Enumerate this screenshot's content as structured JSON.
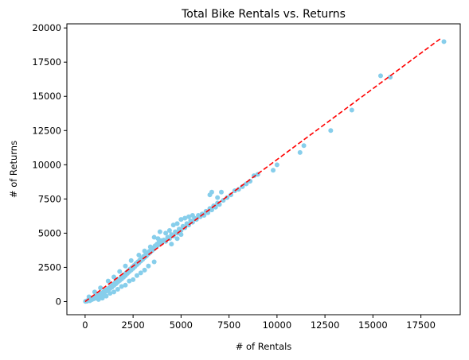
{
  "chart_data": {
    "type": "scatter",
    "title": "Total Bike Rentals vs. Returns",
    "xlabel": "# of Rentals",
    "ylabel": "# of Returns",
    "xlim": [
      -950,
      19550
    ],
    "ylim": [
      -960,
      20300
    ],
    "xticks": [
      0,
      2500,
      5000,
      7500,
      10000,
      12500,
      15000,
      17500
    ],
    "yticks": [
      0,
      2500,
      5000,
      7500,
      10000,
      12500,
      15000,
      17500,
      20000
    ],
    "grid": false,
    "legend": "none",
    "colors": {
      "points": "#87ceeb",
      "reference_line": "#ff0000",
      "axes": "#000000"
    },
    "reference_line": {
      "style": "dashed",
      "x": [
        0,
        18600
      ],
      "y": [
        0,
        19300
      ]
    },
    "points": [
      [
        20,
        10
      ],
      [
        60,
        40
      ],
      [
        100,
        30
      ],
      [
        150,
        90
      ],
      [
        200,
        120
      ],
      [
        250,
        60
      ],
      [
        300,
        180
      ],
      [
        350,
        140
      ],
      [
        400,
        260
      ],
      [
        450,
        200
      ],
      [
        500,
        330
      ],
      [
        550,
        250
      ],
      [
        600,
        420
      ],
      [
        650,
        380
      ],
      [
        700,
        300
      ],
      [
        750,
        520
      ],
      [
        800,
        460
      ],
      [
        850,
        600
      ],
      [
        900,
        520
      ],
      [
        950,
        700
      ],
      [
        1000,
        650
      ],
      [
        1050,
        820
      ],
      [
        1100,
        760
      ],
      [
        1150,
        900
      ],
      [
        1200,
        850
      ],
      [
        1250,
        1000
      ],
      [
        1300,
        960
      ],
      [
        1350,
        1120
      ],
      [
        1400,
        1050
      ],
      [
        1450,
        1250
      ],
      [
        1500,
        1180
      ],
      [
        1550,
        1360
      ],
      [
        1600,
        1300
      ],
      [
        1650,
        1480
      ],
      [
        1700,
        1420
      ],
      [
        1750,
        1600
      ],
      [
        1800,
        1540
      ],
      [
        1850,
        1720
      ],
      [
        1900,
        1650
      ],
      [
        1950,
        1850
      ],
      [
        2000,
        1780
      ],
      [
        2050,
        1980
      ],
      [
        2100,
        1900
      ],
      [
        2150,
        2120
      ],
      [
        2200,
        2050
      ],
      [
        2250,
        2250
      ],
      [
        2300,
        2180
      ],
      [
        2350,
        2380
      ],
      [
        2400,
        2300
      ],
      [
        2450,
        2500
      ],
      [
        2500,
        2420
      ],
      [
        2550,
        2640
      ],
      [
        2600,
        2560
      ],
      [
        2650,
        2780
      ],
      [
        2700,
        2700
      ],
      [
        2750,
        2900
      ],
      [
        2800,
        2820
      ],
      [
        2850,
        3040
      ],
      [
        2900,
        2960
      ],
      [
        2950,
        3160
      ],
      [
        3000,
        3080
      ],
      [
        3050,
        3300
      ],
      [
        3100,
        3220
      ],
      [
        3150,
        3420
      ],
      [
        3200,
        3340
      ],
      [
        3250,
        3560
      ],
      [
        3300,
        3480
      ],
      [
        3350,
        3680
      ],
      [
        3400,
        3600
      ],
      [
        3450,
        3820
      ],
      [
        3500,
        3740
      ],
      [
        3550,
        3940
      ],
      [
        3600,
        3860
      ],
      [
        3650,
        4080
      ],
      [
        3700,
        4000
      ],
      [
        3750,
        4200
      ],
      [
        3800,
        4120
      ],
      [
        3850,
        4340
      ],
      [
        3900,
        4260
      ],
      [
        3950,
        4460
      ],
      [
        700,
        150
      ],
      [
        900,
        250
      ],
      [
        1100,
        400
      ],
      [
        1300,
        600
      ],
      [
        1500,
        700
      ],
      [
        1700,
        900
      ],
      [
        1900,
        1100
      ],
      [
        2100,
        1200
      ],
      [
        2300,
        1500
      ],
      [
        2500,
        1600
      ],
      [
        2700,
        1900
      ],
      [
        2900,
        2100
      ],
      [
        3100,
        2300
      ],
      [
        3300,
        2600
      ],
      [
        3600,
        2900
      ],
      [
        1200,
        1500
      ],
      [
        1500,
        1800
      ],
      [
        1800,
        2200
      ],
      [
        2100,
        2600
      ],
      [
        2400,
        3000
      ],
      [
        2800,
        3400
      ],
      [
        3100,
        3700
      ],
      [
        3400,
        4000
      ],
      [
        3800,
        4600
      ],
      [
        200,
        350
      ],
      [
        500,
        700
      ],
      [
        800,
        1000
      ],
      [
        4000,
        4300
      ],
      [
        4100,
        4500
      ],
      [
        4200,
        4400
      ],
      [
        4300,
        4700
      ],
      [
        4400,
        4600
      ],
      [
        4500,
        4900
      ],
      [
        4600,
        4800
      ],
      [
        4700,
        5100
      ],
      [
        4800,
        5000
      ],
      [
        4900,
        5300
      ],
      [
        5000,
        5200
      ],
      [
        5100,
        5500
      ],
      [
        5200,
        5400
      ],
      [
        5300,
        5700
      ],
      [
        5400,
        5600
      ],
      [
        5500,
        5900
      ],
      [
        5600,
        5800
      ],
      [
        5700,
        6100
      ],
      [
        5800,
        6000
      ],
      [
        5900,
        6300
      ],
      [
        6000,
        6200
      ],
      [
        4200,
        5000
      ],
      [
        4400,
        5200
      ],
      [
        4600,
        5600
      ],
      [
        4800,
        5700
      ],
      [
        5000,
        6000
      ],
      [
        5200,
        6100
      ],
      [
        5400,
        6200
      ],
      [
        5600,
        6300
      ],
      [
        4500,
        4200
      ],
      [
        4800,
        4600
      ],
      [
        5000,
        4900
      ],
      [
        3600,
        4700
      ],
      [
        3900,
        5100
      ],
      [
        6100,
        6400
      ],
      [
        6200,
        6300
      ],
      [
        6300,
        6600
      ],
      [
        6400,
        6500
      ],
      [
        6500,
        6800
      ],
      [
        6600,
        6700
      ],
      [
        6700,
        7000
      ],
      [
        6800,
        6900
      ],
      [
        6900,
        7200
      ],
      [
        7000,
        7100
      ],
      [
        6500,
        7800
      ],
      [
        6600,
        8000
      ],
      [
        6900,
        7600
      ],
      [
        7100,
        8000
      ],
      [
        7200,
        7400
      ],
      [
        7400,
        7600
      ],
      [
        7600,
        7800
      ],
      [
        7800,
        8100
      ],
      [
        8000,
        8200
      ],
      [
        8200,
        8400
      ],
      [
        8400,
        8600
      ],
      [
        8600,
        8800
      ],
      [
        8800,
        9200
      ],
      [
        9000,
        9300
      ],
      [
        9800,
        9600
      ],
      [
        10000,
        10000
      ],
      [
        11200,
        10900
      ],
      [
        11400,
        11400
      ],
      [
        12800,
        12500
      ],
      [
        13900,
        14000
      ],
      [
        15400,
        16500
      ],
      [
        15900,
        16400
      ],
      [
        18700,
        19000
      ]
    ]
  }
}
